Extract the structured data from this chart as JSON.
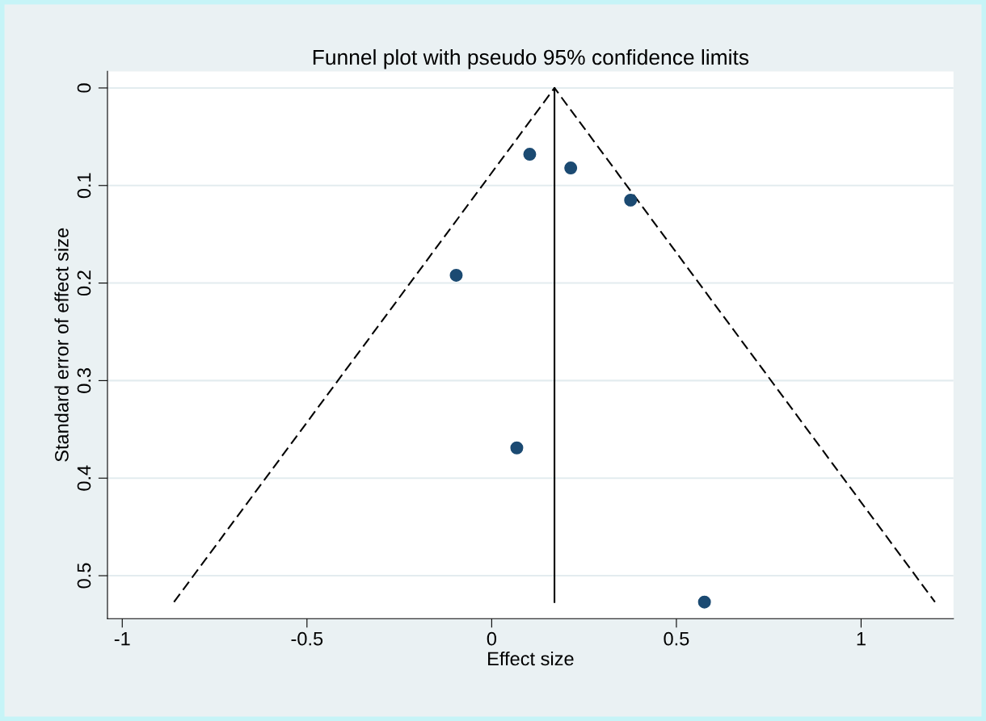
{
  "chart_data": {
    "type": "scatter",
    "title": "Funnel plot with pseudo 95% confidence limits",
    "xlabel": "Effect size",
    "ylabel": "Standard error of effect size",
    "series": [
      {
        "type": "scatter",
        "color": "#1b4a72",
        "marker": "circle",
        "x": [
          0.103,
          0.214,
          0.376,
          -0.096,
          0.068,
          0.576
        ],
        "values": [
          0.068,
          0.082,
          0.115,
          0.192,
          0.369,
          0.527
        ]
      },
      {
        "type": "line",
        "color": "#000000",
        "line_style": "solid",
        "marker": "none",
        "x": [
          0.17,
          0.17
        ],
        "values": [
          0,
          0.527
        ]
      },
      {
        "type": "line",
        "color": "#000000",
        "line_style": "dashed",
        "marker": "none",
        "x": [
          -0.86,
          0.17,
          1.2
        ],
        "values": [
          0.527,
          0,
          0.527
        ]
      }
    ],
    "xlim": [
      -1.04,
      1.25
    ],
    "ylim": [
      0.544,
      -0.017
    ],
    "xticks": [
      -1,
      -0.5,
      0,
      0.5,
      1
    ],
    "yticks": [
      0,
      0.1,
      0.2,
      0.3,
      0.4,
      0.5
    ],
    "grid": "y",
    "legend": false
  }
}
